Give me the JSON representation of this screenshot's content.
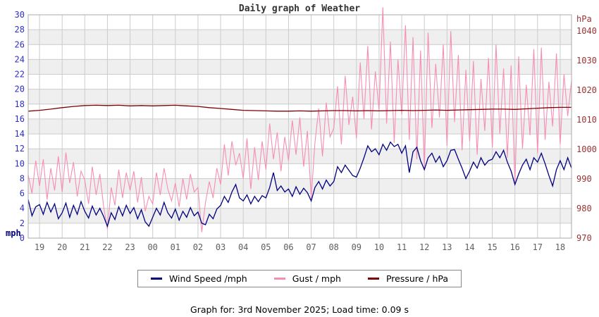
{
  "chart": {
    "title": "Daily graph of Weather",
    "title_color": "#333333",
    "left_axis_unit": "mph",
    "right_axis_unit": "hPa",
    "colors": {
      "left_tick_labels": "#2e2ec8",
      "left_unit_label": "#00007f",
      "right_tick_labels": "#993333",
      "x_tick_labels": "#5f5f5f",
      "gridline": "#cccccc",
      "band_gray": "#efefef",
      "plot_border": "#aaaaaa"
    }
  },
  "chart_data": {
    "type": "line",
    "title": "Daily graph of Weather",
    "x_axis": "time of day, 24 h window from 18:30 previous day to 18:30",
    "x_tick_labels": [
      "19",
      "20",
      "21",
      "22",
      "23",
      "00",
      "01",
      "02",
      "03",
      "04",
      "05",
      "06",
      "07",
      "08",
      "09",
      "10",
      "11",
      "12",
      "13",
      "14",
      "15",
      "16",
      "17",
      "18"
    ],
    "left_axis": {
      "label": "mph",
      "min": 0,
      "max": 30,
      "tick_step": 2
    },
    "right_axis": {
      "label": "hPa",
      "tick_labels": [
        1040,
        1030,
        1020,
        1010,
        1000,
        990,
        980,
        970
      ]
    },
    "grid": true,
    "background": "alternating 2-unit horizontal bands, white and light gray",
    "legend_position": "bottom",
    "series": [
      {
        "name": "Wind Speed /mph",
        "axis": "left",
        "color": "#000080",
        "interval_minutes": 10,
        "start_time": "18:30",
        "values": [
          5.2,
          3.0,
          4.2,
          4.5,
          3.2,
          4.8,
          3.5,
          4.6,
          2.6,
          3.4,
          4.7,
          2.8,
          4.4,
          3.2,
          4.9,
          3.6,
          2.7,
          4.3,
          3.1,
          4.0,
          2.9,
          1.6,
          3.4,
          2.5,
          4.2,
          3.0,
          4.4,
          3.3,
          4.1,
          2.6,
          3.8,
          2.2,
          1.6,
          2.8,
          4.0,
          3.1,
          4.8,
          3.4,
          2.7,
          3.9,
          2.4,
          3.6,
          2.8,
          4.1,
          3.0,
          3.5,
          2.0,
          1.8,
          3.2,
          2.6,
          3.9,
          4.4,
          5.6,
          4.8,
          6.2,
          7.2,
          5.4,
          5.0,
          5.8,
          4.6,
          5.6,
          4.9,
          5.7,
          5.4,
          6.8,
          8.8,
          6.4,
          7.0,
          6.2,
          6.6,
          5.6,
          6.9,
          5.9,
          6.7,
          6.1,
          5.0,
          6.8,
          7.6,
          6.6,
          7.8,
          7.0,
          7.6,
          9.6,
          8.8,
          9.8,
          9.1,
          8.4,
          8.2,
          9.4,
          10.8,
          12.4,
          11.6,
          12.0,
          11.2,
          12.6,
          11.8,
          12.9,
          12.3,
          12.6,
          11.4,
          12.4,
          8.8,
          11.6,
          12.2,
          10.4,
          9.2,
          10.8,
          11.4,
          10.2,
          11.0,
          9.6,
          10.4,
          11.8,
          11.9,
          10.6,
          9.4,
          8.0,
          9.0,
          10.2,
          9.4,
          10.8,
          9.8,
          10.4,
          10.6,
          11.6,
          10.8,
          11.8,
          10.2,
          9.0,
          7.2,
          8.6,
          9.8,
          10.6,
          9.2,
          10.8,
          10.2,
          11.4,
          10.0,
          8.4,
          7.0,
          9.2,
          10.4,
          9.2,
          10.8,
          9.4
        ]
      },
      {
        "name": "Gust / mph",
        "axis": "left",
        "color": "#f78db5",
        "interval_minutes": 10,
        "start_time": "18:30",
        "values": [
          8.5,
          6.0,
          10.4,
          7.0,
          10.6,
          5.2,
          9.4,
          6.4,
          11.0,
          6.2,
          11.5,
          7.4,
          10.2,
          5.6,
          9.0,
          7.8,
          4.6,
          9.6,
          5.8,
          8.6,
          4.2,
          1.2,
          6.8,
          4.4,
          9.2,
          5.4,
          8.8,
          6.4,
          9.0,
          4.8,
          8.2,
          3.6,
          5.6,
          4.6,
          8.8,
          5.8,
          9.4,
          6.6,
          5.0,
          7.4,
          4.2,
          8.0,
          5.2,
          8.6,
          6.2,
          6.8,
          0.8,
          4.8,
          7.6,
          5.4,
          9.4,
          7.2,
          12.6,
          8.4,
          13.0,
          9.8,
          11.4,
          8.0,
          13.4,
          6.6,
          12.2,
          7.8,
          13.0,
          9.2,
          15.4,
          10.6,
          14.2,
          9.0,
          13.6,
          10.4,
          15.8,
          11.2,
          16.2,
          9.6,
          14.4,
          5.4,
          12.8,
          17.4,
          11.0,
          18.2,
          13.6,
          14.8,
          20.4,
          12.6,
          21.8,
          15.2,
          19.0,
          13.4,
          23.6,
          16.0,
          25.8,
          14.6,
          22.4,
          17.2,
          31.0,
          15.4,
          26.4,
          12.8,
          24.0,
          16.6,
          28.6,
          13.2,
          27.0,
          10.6,
          25.2,
          9.4,
          27.6,
          14.8,
          23.4,
          16.2,
          26.0,
          12.4,
          27.8,
          15.6,
          24.6,
          11.8,
          22.6,
          13.0,
          23.8,
          11.2,
          21.4,
          14.4,
          24.2,
          12.2,
          26.0,
          14.0,
          22.8,
          10.8,
          23.2,
          7.4,
          24.4,
          12.0,
          20.6,
          13.8,
          25.4,
          11.4,
          25.6,
          13.2,
          21.0,
          15.0,
          24.8,
          12.6,
          22.0,
          16.4,
          21.2
        ]
      },
      {
        "name": "Pressure / hPa",
        "axis": "right",
        "color": "#7f0000",
        "interval_minutes": 30,
        "start_time": "18:30",
        "values": [
          1012.9,
          1013.2,
          1013.6,
          1014.1,
          1014.5,
          1014.8,
          1014.9,
          1014.8,
          1014.9,
          1014.7,
          1014.8,
          1014.7,
          1014.8,
          1014.9,
          1014.7,
          1014.5,
          1014.1,
          1013.8,
          1013.5,
          1013.2,
          1013.1,
          1013.0,
          1012.9,
          1012.9,
          1013.0,
          1012.9,
          1013.0,
          1013.1,
          1013.1,
          1013.0,
          1013.1,
          1013.0,
          1013.1,
          1013.2,
          1013.1,
          1013.2,
          1013.3,
          1013.2,
          1013.3,
          1013.4,
          1013.5,
          1013.6,
          1013.6,
          1013.5,
          1013.7,
          1013.9,
          1014.1,
          1014.2,
          1014.2
        ]
      }
    ]
  },
  "legend": {
    "items": [
      {
        "label": "Wind Speed /mph",
        "color": "#000080"
      },
      {
        "label": "Gust / mph",
        "color": "#f78db5"
      },
      {
        "label": "Pressure / hPa",
        "color": "#7f0000"
      }
    ]
  },
  "footer": {
    "text": "Graph for: 3rd November 2025; Load time: 0.09 s"
  }
}
